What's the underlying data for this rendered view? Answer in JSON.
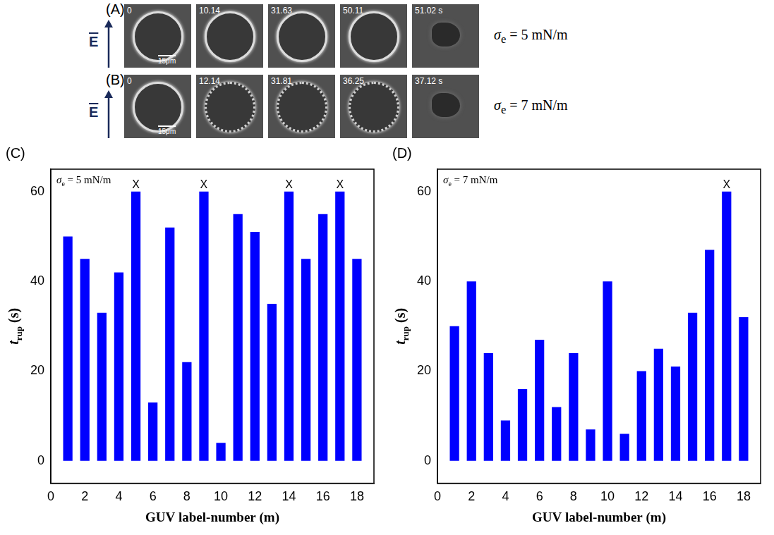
{
  "image_rows": [
    {
      "label": "(A)",
      "field": "E",
      "times": [
        "0",
        "10.14",
        "31.63",
        "50.11",
        "51.02 s"
      ],
      "scale_bar": "15μm",
      "condition": {
        "symbol": "σ",
        "subscript": "e",
        "value": "= 5 mN/m"
      }
    },
    {
      "label": "(B)",
      "field": "E",
      "times": [
        "0",
        "12.14",
        "31.81",
        "36.25",
        "37.12 s"
      ],
      "scale_bar": "15μm",
      "condition": {
        "symbol": "σ",
        "subscript": "e",
        "value": "= 7 mN/m"
      }
    }
  ],
  "chart_data": [
    {
      "type": "bar",
      "panel": "(C)",
      "annotation": {
        "symbol": "σ",
        "subscript": "e",
        "value": "= 5 mN/m"
      },
      "x_label": "GUV label-number (m)",
      "y_label": {
        "symbol": "t",
        "subscript": "rup",
        "unit": "(s)"
      },
      "x": [
        1,
        2,
        3,
        4,
        5,
        6,
        7,
        8,
        9,
        10,
        11,
        12,
        13,
        14,
        15,
        16,
        17,
        18
      ],
      "values": [
        50,
        45,
        33,
        42,
        60,
        13,
        52,
        22,
        60,
        4,
        55,
        51,
        35,
        60,
        45,
        55,
        60,
        45
      ],
      "color": "#0000ff",
      "marked": [
        5,
        9,
        14,
        17
      ],
      "mark_text": "X",
      "xlim": [
        0,
        19
      ],
      "xticks": [
        0,
        2,
        4,
        6,
        8,
        10,
        12,
        14,
        16,
        18
      ],
      "ylim": [
        -5,
        65
      ],
      "yticks": [
        0,
        20,
        40,
        60
      ],
      "grid": false
    },
    {
      "type": "bar",
      "panel": "(D)",
      "annotation": {
        "symbol": "σ",
        "subscript": "e",
        "value": "= 7 mN/m"
      },
      "x_label": "GUV label-number (m)",
      "y_label": {
        "symbol": "t",
        "subscript": "rup",
        "unit": "(s)"
      },
      "x": [
        1,
        2,
        3,
        4,
        5,
        6,
        7,
        8,
        9,
        10,
        11,
        12,
        13,
        14,
        15,
        16,
        17,
        18
      ],
      "values": [
        30,
        40,
        24,
        9,
        16,
        27,
        12,
        24,
        7,
        40,
        6,
        20,
        25,
        21,
        33,
        47,
        60,
        32
      ],
      "color": "#0000ff",
      "marked": [
        17
      ],
      "mark_text": "X",
      "xlim": [
        0,
        19
      ],
      "xticks": [
        0,
        2,
        4,
        6,
        8,
        10,
        12,
        14,
        16,
        18
      ],
      "ylim": [
        -5,
        65
      ],
      "yticks": [
        0,
        20,
        40,
        60
      ],
      "grid": false
    }
  ]
}
